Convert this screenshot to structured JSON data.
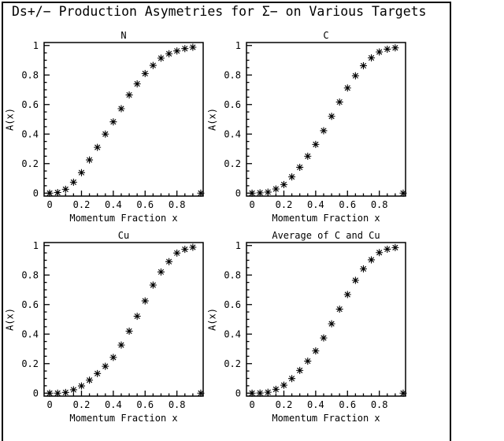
{
  "title": "Ds+/− Production Asymetries for Σ− on Various Targets",
  "marker": {
    "shape": "asterisk",
    "color": "#000000"
  },
  "chart_data": [
    {
      "type": "scatter",
      "title": "N",
      "xlabel": "Momentum Fraction x",
      "ylabel": "A(x)",
      "xlim": [
        -0.035,
        0.965
      ],
      "ylim": [
        -0.02,
        1.02
      ],
      "xtick_values": [
        0,
        0.2,
        0.4,
        0.6,
        0.8
      ],
      "xtick_labels": [
        "0",
        "0.2",
        "0.4",
        "0.6",
        "0.8"
      ],
      "ytick_values": [
        0,
        0.2,
        0.4,
        0.6,
        0.8,
        1
      ],
      "ytick_labels": [
        "0",
        "0.2",
        "0.4",
        "0.6",
        "0.8",
        "1"
      ],
      "minor_tick_step": 0.05,
      "x": [
        0.0,
        0.05,
        0.1,
        0.15,
        0.2,
        0.25,
        0.3,
        0.35,
        0.4,
        0.45,
        0.5,
        0.55,
        0.6,
        0.65,
        0.7,
        0.75,
        0.8,
        0.85,
        0.9,
        0.95
      ],
      "y": [
        0.0,
        0.004,
        0.026,
        0.074,
        0.139,
        0.225,
        0.31,
        0.4,
        0.483,
        0.572,
        0.665,
        0.74,
        0.81,
        0.865,
        0.914,
        0.944,
        0.963,
        0.979,
        0.988,
        0.0
      ]
    },
    {
      "type": "scatter",
      "title": "C",
      "xlabel": "Momentum Fraction x",
      "ylabel": "A(x)",
      "xlim": [
        -0.035,
        0.965
      ],
      "ylim": [
        -0.02,
        1.02
      ],
      "xtick_values": [
        0,
        0.2,
        0.4,
        0.6,
        0.8
      ],
      "xtick_labels": [
        "0",
        "0.2",
        "0.4",
        "0.6",
        "0.8"
      ],
      "ytick_values": [
        0,
        0.2,
        0.4,
        0.6,
        0.8,
        1
      ],
      "ytick_labels": [
        "0",
        "0.2",
        "0.4",
        "0.6",
        "0.8",
        "1"
      ],
      "minor_tick_step": 0.05,
      "x": [
        0.0,
        0.05,
        0.1,
        0.15,
        0.2,
        0.25,
        0.3,
        0.35,
        0.4,
        0.45,
        0.5,
        0.55,
        0.6,
        0.65,
        0.7,
        0.75,
        0.8,
        0.85,
        0.9,
        0.95
      ],
      "y": [
        0.0,
        0.002,
        0.007,
        0.028,
        0.058,
        0.11,
        0.175,
        0.25,
        0.33,
        0.423,
        0.52,
        0.617,
        0.712,
        0.795,
        0.863,
        0.916,
        0.956,
        0.975,
        0.984,
        0.0
      ]
    },
    {
      "type": "scatter",
      "title": "Cu",
      "xlabel": "Momentum Fraction x",
      "ylabel": "A(x)",
      "xlim": [
        -0.035,
        0.965
      ],
      "ylim": [
        -0.02,
        1.02
      ],
      "xtick_values": [
        0,
        0.2,
        0.4,
        0.6,
        0.8
      ],
      "xtick_labels": [
        "0",
        "0.2",
        "0.4",
        "0.6",
        "0.8"
      ],
      "ytick_values": [
        0,
        0.2,
        0.4,
        0.6,
        0.8,
        1
      ],
      "ytick_labels": [
        "0",
        "0.2",
        "0.4",
        "0.6",
        "0.8",
        "1"
      ],
      "minor_tick_step": 0.05,
      "x": [
        0.0,
        0.05,
        0.1,
        0.15,
        0.2,
        0.25,
        0.3,
        0.35,
        0.4,
        0.45,
        0.5,
        0.55,
        0.6,
        0.65,
        0.7,
        0.75,
        0.8,
        0.85,
        0.9,
        0.95
      ],
      "y": [
        0.0,
        0.0,
        0.005,
        0.023,
        0.049,
        0.088,
        0.133,
        0.182,
        0.242,
        0.326,
        0.42,
        0.521,
        0.625,
        0.732,
        0.821,
        0.891,
        0.949,
        0.974,
        0.988,
        0.0
      ]
    },
    {
      "type": "scatter",
      "title": "Average of C and Cu",
      "xlabel": "Momentum Fraction x",
      "ylabel": "A(x)",
      "xlim": [
        -0.035,
        0.965
      ],
      "ylim": [
        -0.02,
        1.02
      ],
      "xtick_values": [
        0,
        0.2,
        0.4,
        0.6,
        0.8
      ],
      "xtick_labels": [
        "0",
        "0.2",
        "0.4",
        "0.6",
        "0.8"
      ],
      "ytick_values": [
        0,
        0.2,
        0.4,
        0.6,
        0.8,
        1
      ],
      "ytick_labels": [
        "0",
        "0.2",
        "0.4",
        "0.6",
        "0.8",
        "1"
      ],
      "minor_tick_step": 0.05,
      "x": [
        0.0,
        0.05,
        0.1,
        0.15,
        0.2,
        0.25,
        0.3,
        0.35,
        0.4,
        0.45,
        0.5,
        0.55,
        0.6,
        0.65,
        0.7,
        0.75,
        0.8,
        0.85,
        0.9,
        0.95
      ],
      "y": [
        0.0,
        0.001,
        0.006,
        0.026,
        0.054,
        0.099,
        0.154,
        0.217,
        0.286,
        0.374,
        0.47,
        0.569,
        0.668,
        0.764,
        0.842,
        0.903,
        0.952,
        0.975,
        0.986,
        0.0
      ]
    }
  ]
}
